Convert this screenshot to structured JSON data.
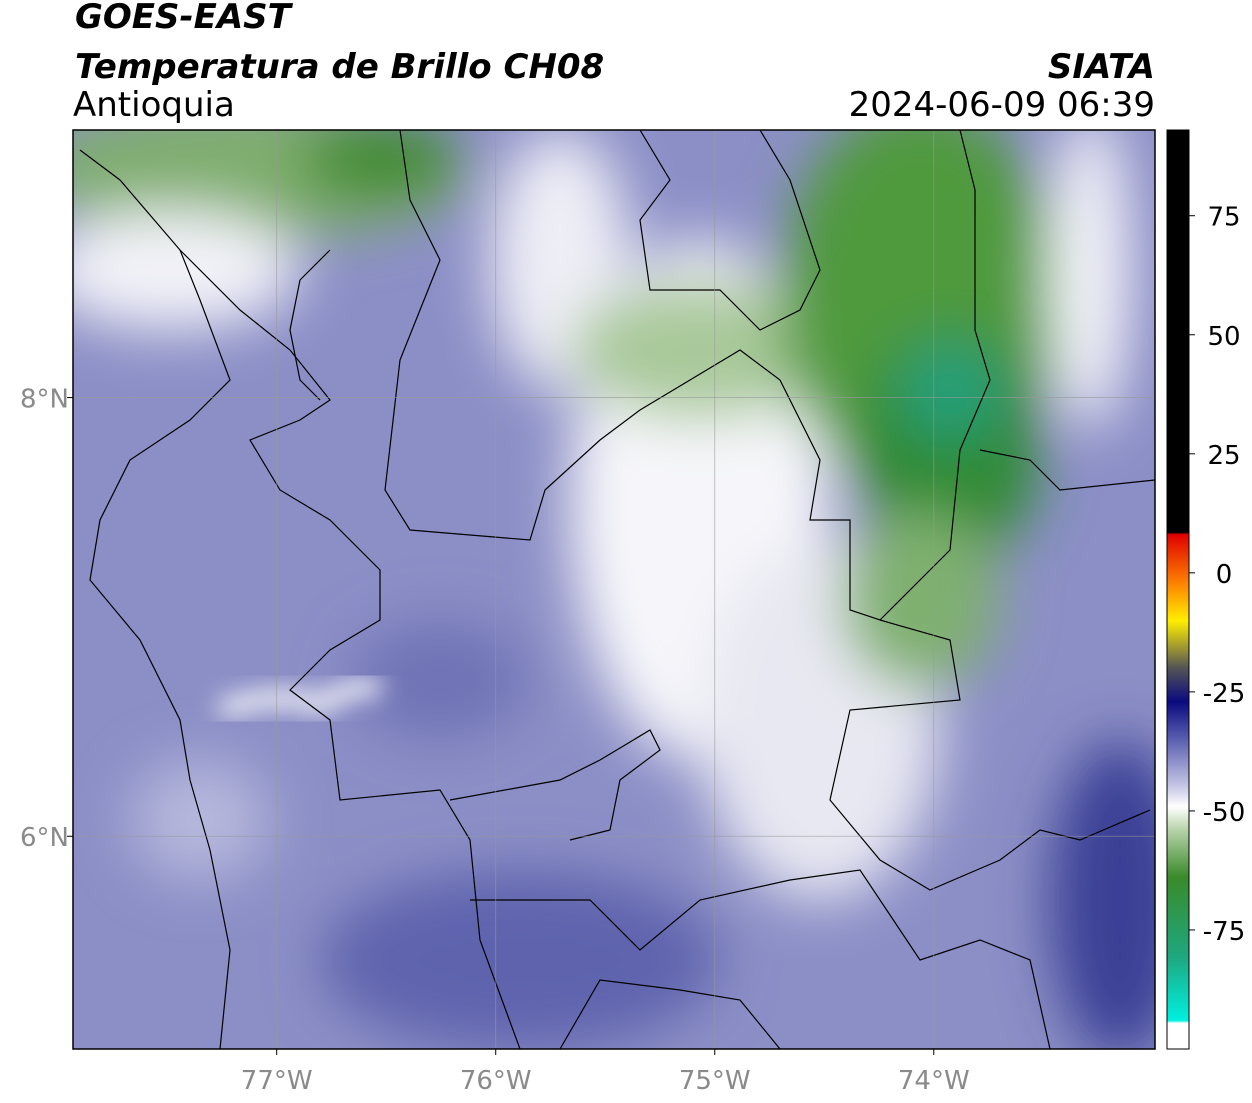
{
  "header": {
    "satellite": "GOES-EAST",
    "product": "Temperatura de Brillo CH08",
    "region": "Antioquia",
    "agency": "SIATA",
    "datetime": "2024-06-09 06:39"
  },
  "map": {
    "xlim": [
      -77.93,
      -72.99
    ],
    "ylim": [
      5.03,
      9.22
    ],
    "xticks": [
      {
        "value": -77,
        "label": "77°W"
      },
      {
        "value": -76,
        "label": "76°W"
      },
      {
        "value": -75,
        "label": "75°W"
      },
      {
        "value": -74,
        "label": "74°W"
      }
    ],
    "yticks": [
      {
        "value": 6,
        "label": "6°N"
      },
      {
        "value": 8,
        "label": "8°N"
      }
    ],
    "grid": true
  },
  "colorbar": {
    "lim": [
      -100,
      93
    ],
    "ticks": [
      75,
      50,
      25,
      0,
      -25,
      -50,
      -75
    ]
  }
}
